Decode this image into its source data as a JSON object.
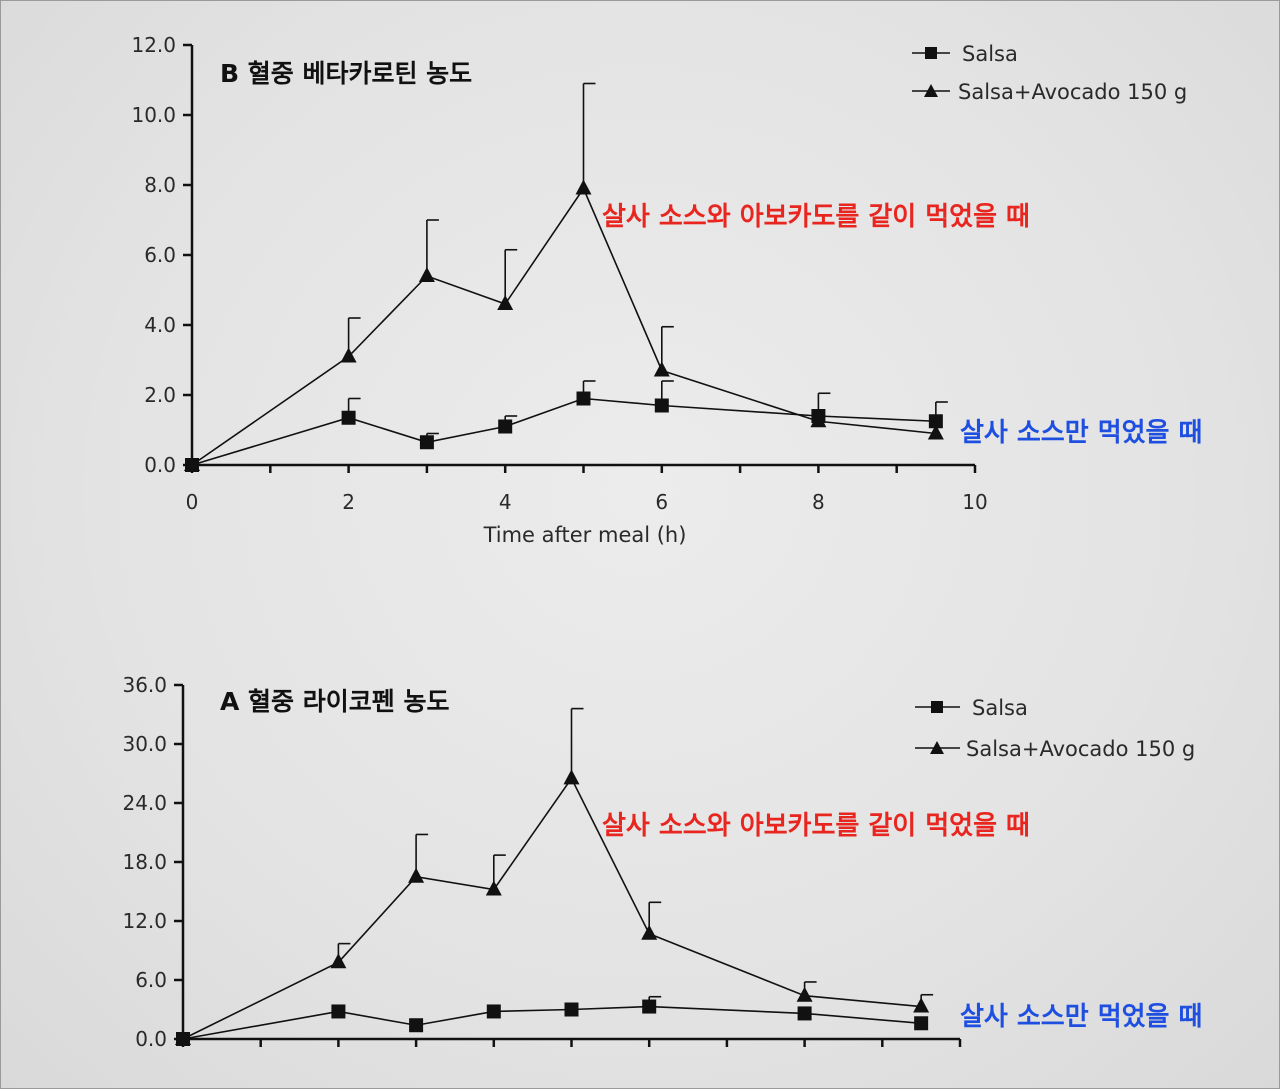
{
  "chart_data": [
    {
      "type": "line",
      "panel": "B",
      "title": "B 혈중 베타카로틴 농도",
      "xlabel": "Time after meal (h)",
      "ylabel": "",
      "xlim": [
        0,
        10
      ],
      "ylim": [
        0,
        12
      ],
      "x_ticks": [
        "0",
        "2",
        "4",
        "6",
        "8",
        "10"
      ],
      "y_ticks": [
        "0.0",
        "2.0",
        "4.0",
        "6.0",
        "8.0",
        "10.0",
        "12.0"
      ],
      "x_tick_values": [
        0,
        2,
        4,
        6,
        8,
        10
      ],
      "y_tick_values": [
        0,
        2,
        4,
        6,
        8,
        10,
        12
      ],
      "x_minor_ticks": [
        0,
        1,
        2,
        3,
        4,
        5,
        6,
        7,
        8,
        9,
        10
      ],
      "legend_position": "top-right",
      "series": [
        {
          "name": "Salsa",
          "marker": "square",
          "x": [
            0,
            2,
            3,
            4,
            5,
            6,
            8,
            9.5
          ],
          "values": [
            0,
            1.35,
            0.65,
            1.1,
            1.9,
            1.7,
            1.4,
            1.25
          ],
          "errors": [
            0,
            0.55,
            0.25,
            0.3,
            0.5,
            0.7,
            0.65,
            0.55
          ]
        },
        {
          "name": "Salsa+Avocado 150 g",
          "marker": "triangle",
          "x": [
            0,
            2,
            3,
            4,
            5,
            6,
            8,
            9.5
          ],
          "values": [
            0,
            3.1,
            5.4,
            4.6,
            7.9,
            2.7,
            1.25,
            0.9
          ],
          "errors": [
            0,
            1.1,
            1.6,
            1.55,
            3.0,
            1.25,
            0,
            0
          ]
        }
      ],
      "annotations": {
        "avocado": "살사 소스와 아보카도를 같이 먹었을 때",
        "salsa_only": "살사 소스만 먹었을 때"
      }
    },
    {
      "type": "line",
      "panel": "A",
      "title": "A 혈중 라이코펜 농도",
      "xlabel": "",
      "ylabel": "",
      "xlim": [
        0,
        10
      ],
      "ylim": [
        0,
        36
      ],
      "x_ticks": [],
      "y_ticks": [
        "0.0",
        "6.0",
        "12.0",
        "18.0",
        "24.0",
        "30.0",
        "36.0"
      ],
      "x_tick_values": [],
      "y_tick_values": [
        0,
        6,
        12,
        18,
        24,
        30,
        36
      ],
      "x_minor_ticks": [
        0,
        1,
        2,
        3,
        4,
        5,
        6,
        7,
        8,
        9,
        10
      ],
      "legend_position": "top-right",
      "series": [
        {
          "name": "Salsa",
          "marker": "square",
          "x": [
            0,
            2,
            3,
            4,
            5,
            6,
            8,
            9.5
          ],
          "values": [
            0,
            2.8,
            1.4,
            2.8,
            3.0,
            3.3,
            2.6,
            1.6
          ],
          "errors": [
            0,
            0,
            0,
            0,
            0,
            1.0,
            0,
            0
          ]
        },
        {
          "name": "Salsa+Avocado 150 g",
          "marker": "triangle",
          "x": [
            0,
            2,
            3,
            4,
            5,
            6,
            8,
            9.5
          ],
          "values": [
            0,
            7.8,
            16.5,
            15.2,
            26.5,
            10.7,
            4.4,
            3.3
          ],
          "errors": [
            0,
            1.9,
            4.3,
            3.5,
            7.1,
            3.2,
            1.4,
            1.2
          ]
        }
      ],
      "annotations": {
        "avocado": "살사 소스와 아보카도를 같이 먹었을 때",
        "salsa_only": "살사 소스만 먹었을 때"
      }
    }
  ]
}
